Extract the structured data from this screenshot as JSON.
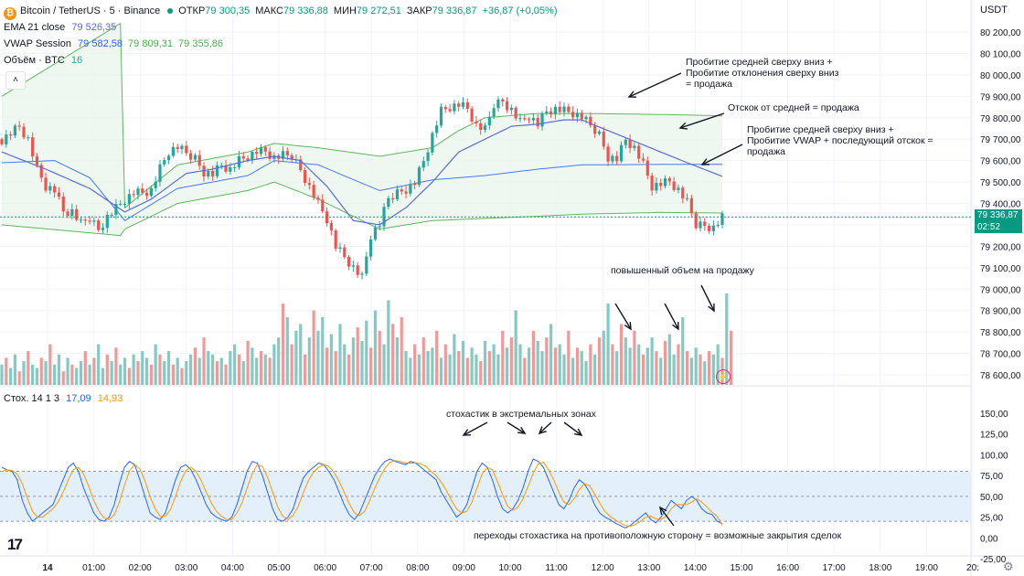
{
  "header": {
    "symbol": "Bitcoin / TetherUS · 5 · Binance",
    "ohlc": [
      {
        "label": "ОТКР",
        "value": "79 300,35"
      },
      {
        "label": "МАКС",
        "value": "79 336,88"
      },
      {
        "label": "МИН",
        "value": "79 272,51"
      },
      {
        "label": "ЗАКР",
        "value": "79 336,87"
      }
    ],
    "change": "+36,87 (+0,05%)",
    "currency": "USDT"
  },
  "indicators": {
    "ema": {
      "label": "EMA 21 close",
      "value": "79 526,35"
    },
    "vwap": {
      "label": "VWAP Session",
      "values": [
        "79 582,58",
        "79 809,31",
        "79 355,86"
      ]
    },
    "volume": {
      "label": "Объём · BTC",
      "value": "16"
    },
    "stoch": {
      "label": "Стох. 14 1 3",
      "k": "17,09",
      "d": "14,93"
    }
  },
  "price_tag": {
    "price": "79 336,87",
    "countdown": "02:52"
  },
  "annotations": {
    "a1": [
      "Пробитие средней сверху вниз +",
      "Пробитие отклонения сверху вниз",
      "= продажа"
    ],
    "a2": "Отскок от средней = продажа",
    "a3": [
      "Пробитие средней сверху вниз +",
      "Пробитие VWAP + последующий отскок =",
      "продажа"
    ],
    "a4": "повышенный объем на продажу",
    "a5": "стохастик в экстремальных зонах",
    "a6": "переходы стохастика на противоположную сторону = возможные закрытия сделок"
  },
  "icons": {
    "logo": "tradingview-logo-icon",
    "settings": "gear-icon",
    "bolt": "lightning-icon"
  },
  "colors": {
    "up": "#26a69a",
    "down": "#ef5350",
    "ema": "#5b6bd6",
    "vwap": "#4caf50",
    "stoch_k": "#2962ff",
    "stoch_d": "#ff9800",
    "band": "#e3f0fb",
    "tag": "#089981"
  },
  "chart_data": [
    {
      "type": "candlestick",
      "title": "Bitcoin / TetherUS · 5 · Binance",
      "x_ticks": [
        "14",
        "01:00",
        "02:00",
        "03:00",
        "04:00",
        "05:00",
        "06:00",
        "07:00",
        "08:00",
        "09:00",
        "10:00",
        "11:00",
        "12:00",
        "13:00",
        "14:00",
        "15:00",
        "16:00",
        "17:00",
        "18:00",
        "19:00",
        "20:"
      ],
      "y_ticks": [
        "80 200,00",
        "80 100,00",
        "80 000,00",
        "79 900,00",
        "79 800,00",
        "79 700,00",
        "79 600,00",
        "79 500,00",
        "79 400,00",
        "79 300,00",
        "79 200,00",
        "79 100,00",
        "79 000,00",
        "78 900,00",
        "78 800,00",
        "78 700,00",
        "78 600,00"
      ],
      "ylim": [
        78600,
        80200
      ],
      "close_path": [
        [
          0,
          79700
        ],
        [
          2,
          79730
        ],
        [
          4,
          79760
        ],
        [
          6,
          79700
        ],
        [
          8,
          79560
        ],
        [
          10,
          79480
        ],
        [
          12,
          79460
        ],
        [
          14,
          79360
        ],
        [
          16,
          79360
        ],
        [
          18,
          79300
        ],
        [
          20,
          79330
        ],
        [
          22,
          79280
        ],
        [
          24,
          79340
        ],
        [
          26,
          79380
        ],
        [
          28,
          79420
        ],
        [
          30,
          79450
        ],
        [
          32,
          79450
        ],
        [
          34,
          79460
        ],
        [
          36,
          79560
        ],
        [
          38,
          79640
        ],
        [
          40,
          79660
        ],
        [
          42,
          79630
        ],
        [
          44,
          79610
        ],
        [
          46,
          79550
        ],
        [
          48,
          79540
        ],
        [
          50,
          79580
        ],
        [
          52,
          79560
        ],
        [
          54,
          79600
        ],
        [
          56,
          79620
        ],
        [
          58,
          79640
        ],
        [
          60,
          79640
        ],
        [
          62,
          79610
        ],
        [
          64,
          79620
        ],
        [
          66,
          79620
        ],
        [
          68,
          79560
        ],
        [
          70,
          79480
        ],
        [
          72,
          79400
        ],
        [
          74,
          79330
        ],
        [
          76,
          79200
        ],
        [
          78,
          79150
        ],
        [
          80,
          79100
        ],
        [
          82,
          79050
        ],
        [
          84,
          79250
        ],
        [
          86,
          79300
        ],
        [
          88,
          79420
        ],
        [
          90,
          79450
        ],
        [
          92,
          79470
        ],
        [
          94,
          79500
        ],
        [
          96,
          79600
        ],
        [
          98,
          79720
        ],
        [
          100,
          79830
        ],
        [
          102,
          79850
        ],
        [
          104,
          79860
        ],
        [
          106,
          79840
        ],
        [
          108,
          79760
        ],
        [
          110,
          79740
        ],
        [
          112,
          79860
        ],
        [
          114,
          79880
        ],
        [
          116,
          79840
        ],
        [
          118,
          79780
        ],
        [
          120,
          79810
        ],
        [
          122,
          79770
        ],
        [
          124,
          79830
        ],
        [
          126,
          79840
        ],
        [
          128,
          79830
        ],
        [
          130,
          79820
        ],
        [
          132,
          79800
        ],
        [
          134,
          79760
        ],
        [
          136,
          79720
        ],
        [
          138,
          79620
        ],
        [
          140,
          79610
        ],
        [
          142,
          79700
        ],
        [
          144,
          79660
        ],
        [
          146,
          79580
        ],
        [
          148,
          79480
        ],
        [
          150,
          79490
        ],
        [
          152,
          79500
        ],
        [
          154,
          79460
        ],
        [
          156,
          79400
        ],
        [
          158,
          79300
        ],
        [
          160,
          79300
        ],
        [
          162,
          79290
        ],
        [
          164,
          79336
        ]
      ],
      "ema21": [
        [
          0,
          79640
        ],
        [
          10,
          79560
        ],
        [
          20,
          79470
        ],
        [
          28,
          79360
        ],
        [
          34,
          79420
        ],
        [
          42,
          79540
        ],
        [
          48,
          79560
        ],
        [
          56,
          79600
        ],
        [
          62,
          79620
        ],
        [
          68,
          79600
        ],
        [
          74,
          79480
        ],
        [
          80,
          79320
        ],
        [
          86,
          79300
        ],
        [
          92,
          79380
        ],
        [
          98,
          79500
        ],
        [
          104,
          79640
        ],
        [
          110,
          79700
        ],
        [
          116,
          79760
        ],
        [
          122,
          79770
        ],
        [
          128,
          79790
        ],
        [
          132,
          79790
        ],
        [
          138,
          79740
        ],
        [
          144,
          79690
        ],
        [
          150,
          79640
        ],
        [
          156,
          79590
        ],
        [
          164,
          79526
        ]
      ],
      "vwap": [
        {
          "name": "middle",
          "points": [
            [
              0,
              79590
            ],
            [
              12,
              79600
            ],
            [
              20,
              79520
            ],
            [
              28,
              79320
            ],
            [
              40,
              79470
            ],
            [
              56,
              79530
            ],
            [
              62,
              79600
            ],
            [
              72,
              79580
            ],
            [
              86,
              79460
            ],
            [
              98,
              79510
            ],
            [
              110,
              79530
            ],
            [
              122,
              79560
            ],
            [
              132,
              79580
            ],
            [
              150,
              79582
            ],
            [
              164,
              79582
            ]
          ]
        },
        {
          "name": "upper",
          "points": [
            [
              0,
              79900
            ],
            [
              27,
              80240
            ],
            [
              28,
              79380
            ],
            [
              40,
              79580
            ],
            [
              56,
              79640
            ],
            [
              62,
              79680
            ],
            [
              72,
              79660
            ],
            [
              86,
              79620
            ],
            [
              98,
              79660
            ],
            [
              104,
              79740
            ],
            [
              110,
              79800
            ],
            [
              122,
              79820
            ],
            [
              132,
              79820
            ],
            [
              150,
              79815
            ],
            [
              164,
              79809
            ]
          ]
        },
        {
          "name": "lower",
          "points": [
            [
              0,
              79300
            ],
            [
              27,
              79250
            ],
            [
              28,
              79280
            ],
            [
              40,
              79400
            ],
            [
              56,
              79460
            ],
            [
              62,
              79500
            ],
            [
              72,
              79420
            ],
            [
              86,
              79280
            ],
            [
              98,
              79320
            ],
            [
              110,
              79330
            ],
            [
              122,
              79340
            ],
            [
              132,
              79350
            ],
            [
              150,
              79358
            ],
            [
              164,
              79355
            ]
          ]
        }
      ],
      "last_price": 79336.87
    },
    {
      "type": "bar",
      "title": "Объём · BTC",
      "values": [
        6,
        8,
        5,
        9,
        4,
        7,
        10,
        6,
        5,
        8,
        7,
        12,
        6,
        9,
        4,
        8,
        6,
        5,
        7,
        10,
        6,
        8,
        12,
        5,
        9,
        7,
        11,
        6,
        8,
        5,
        9,
        7,
        10,
        8,
        6,
        12,
        9,
        7,
        10,
        6,
        8,
        5,
        7,
        9,
        11,
        8,
        14,
        10,
        9,
        7,
        8,
        6,
        10,
        12,
        9,
        7,
        13,
        11,
        8,
        10,
        9,
        8,
        12,
        14,
        24,
        20,
        12,
        16,
        18,
        9,
        14,
        22,
        16,
        20,
        11,
        15,
        10,
        18,
        12,
        9,
        14,
        17,
        13,
        19,
        11,
        22,
        16,
        12,
        25,
        18,
        14,
        20,
        10,
        8,
        12,
        9,
        14,
        10,
        11,
        16,
        8,
        12,
        9,
        15,
        10,
        13,
        8,
        11,
        9,
        7,
        13,
        10,
        12,
        9,
        16,
        11,
        14,
        22,
        12,
        8,
        11,
        16,
        13,
        10,
        14,
        18,
        11,
        12,
        9,
        16,
        8,
        11,
        10,
        7,
        12,
        9,
        14,
        16,
        24,
        12,
        10,
        18,
        14,
        11,
        16,
        12,
        9,
        11,
        14,
        10,
        8,
        13,
        15,
        9,
        12,
        20,
        10,
        8,
        11,
        9,
        7,
        10,
        9,
        12,
        8,
        27,
        16
      ],
      "up_flags": "mixed"
    },
    {
      "type": "line",
      "title": "Стох. 14 1 3",
      "y_ticks": [
        "150,00",
        "125,00",
        "100,00",
        "75,00",
        "50,00",
        "25,00",
        "0,00",
        "-25,00"
      ],
      "ylim": [
        -25,
        150
      ],
      "band": [
        20,
        80
      ],
      "series": [
        {
          "name": "%K",
          "values": [
            85,
            82,
            80,
            70,
            45,
            30,
            20,
            25,
            30,
            35,
            40,
            55,
            70,
            85,
            90,
            80,
            60,
            45,
            30,
            22,
            20,
            25,
            40,
            65,
            85,
            92,
            88,
            70,
            50,
            30,
            25,
            22,
            30,
            50,
            70,
            85,
            88,
            82,
            70,
            55,
            40,
            30,
            25,
            22,
            20,
            25,
            40,
            60,
            80,
            92,
            90,
            75,
            55,
            35,
            22,
            20,
            25,
            35,
            55,
            72,
            80,
            85,
            90,
            88,
            80,
            70,
            55,
            40,
            28,
            22,
            30,
            45,
            60,
            75,
            85,
            92,
            95,
            92,
            90,
            88,
            92,
            90,
            85,
            80,
            75,
            70,
            55,
            45,
            35,
            25,
            30,
            40,
            60,
            80,
            90,
            85,
            70,
            50,
            35,
            30,
            35,
            45,
            60,
            80,
            95,
            92,
            85,
            70,
            55,
            40,
            35,
            45,
            60,
            70,
            65,
            55,
            40,
            30,
            25,
            22,
            18,
            15,
            12,
            15,
            20,
            25,
            30,
            22,
            18,
            25,
            35,
            45,
            40,
            35,
            45,
            50,
            45,
            35,
            30,
            28,
            20,
            17
          ]
        },
        {
          "name": "%D",
          "values": [
            80,
            82,
            81,
            77,
            65,
            48,
            32,
            25,
            25,
            30,
            35,
            43,
            55,
            70,
            82,
            85,
            77,
            62,
            45,
            32,
            24,
            22,
            28,
            43,
            63,
            81,
            88,
            83,
            69,
            50,
            35,
            26,
            26,
            34,
            50,
            68,
            81,
            85,
            80,
            69,
            55,
            42,
            32,
            26,
            22,
            22,
            30,
            42,
            60,
            77,
            88,
            86,
            73,
            55,
            37,
            26,
            22,
            27,
            38,
            54,
            69,
            79,
            85,
            88,
            86,
            79,
            68,
            55,
            41,
            30,
            27,
            32,
            45,
            60,
            73,
            84,
            91,
            93,
            92,
            90,
            90,
            90,
            89,
            86,
            80,
            75,
            67,
            57,
            45,
            35,
            30,
            32,
            43,
            60,
            77,
            85,
            82,
            68,
            52,
            38,
            33,
            37,
            47,
            62,
            78,
            89,
            91,
            82,
            70,
            55,
            43,
            40,
            47,
            58,
            65,
            63,
            53,
            42,
            32,
            26,
            22,
            18,
            15,
            14,
            16,
            20,
            25,
            26,
            23,
            22,
            26,
            35,
            40,
            40,
            40,
            43,
            47,
            43,
            37,
            31,
            26,
            15
          ]
        }
      ]
    }
  ]
}
